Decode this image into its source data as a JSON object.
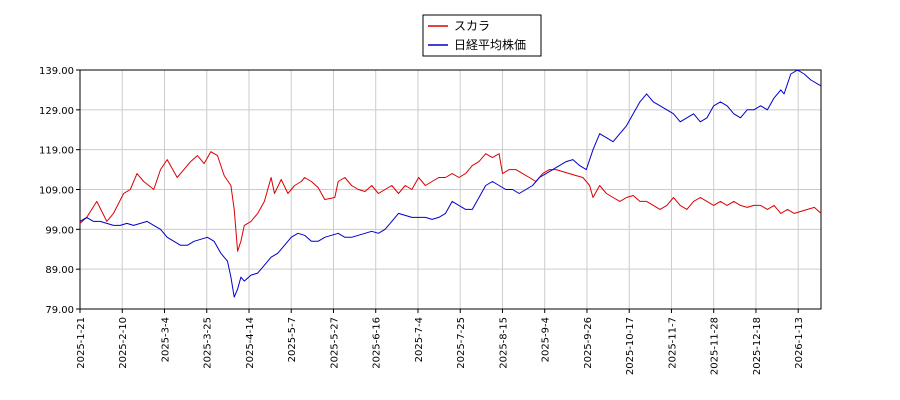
{
  "chart_data": {
    "type": "line",
    "title": "",
    "xlabel": "",
    "ylabel": "",
    "ylim": [
      79,
      139
    ],
    "yticks": [
      "79.00",
      "89.00",
      "99.00",
      "109.00",
      "119.00",
      "129.00",
      "139.00"
    ],
    "xticks": [
      "2025-1-21",
      "2025-2-10",
      "2025-3-4",
      "2025-3-25",
      "2025-4-14",
      "2025-5-7",
      "2025-5-27",
      "2025-6-16",
      "2025-7-4",
      "2025-7-25",
      "2025-8-15",
      "2025-9-4",
      "2025-9-26",
      "2025-10-17",
      "2025-11-7",
      "2025-11-28",
      "2025-12-18",
      "2026-1-13"
    ],
    "grid": true,
    "legend": "top-center",
    "series": [
      {
        "name": "スカラ",
        "color": "#dd0000",
        "points": [
          [
            0,
            100.5
          ],
          [
            2,
            102
          ],
          [
            5,
            106
          ],
          [
            8,
            101
          ],
          [
            10,
            103
          ],
          [
            13,
            108
          ],
          [
            15,
            109
          ],
          [
            17,
            113
          ],
          [
            19,
            111
          ],
          [
            22,
            109
          ],
          [
            24,
            114
          ],
          [
            26,
            116.5
          ],
          [
            29,
            112
          ],
          [
            31,
            114
          ],
          [
            33,
            116
          ],
          [
            35,
            117.5
          ],
          [
            37,
            115.5
          ],
          [
            39,
            118.5
          ],
          [
            41,
            117.5
          ],
          [
            43,
            112.5
          ],
          [
            45,
            110
          ],
          [
            46,
            104
          ],
          [
            47,
            93.5
          ],
          [
            48,
            96
          ],
          [
            49,
            100
          ],
          [
            51,
            101
          ],
          [
            53,
            103
          ],
          [
            55,
            106
          ],
          [
            57,
            112
          ],
          [
            58,
            108
          ],
          [
            60,
            111.5
          ],
          [
            62,
            108
          ],
          [
            64,
            110
          ],
          [
            66,
            111
          ],
          [
            67,
            112
          ],
          [
            69,
            111
          ],
          [
            71,
            109.5
          ],
          [
            73,
            106.5
          ],
          [
            76,
            107
          ],
          [
            77,
            111
          ],
          [
            79,
            112
          ],
          [
            81,
            110
          ],
          [
            83,
            109
          ],
          [
            85,
            108.5
          ],
          [
            87,
            110
          ],
          [
            89,
            108
          ],
          [
            91,
            109
          ],
          [
            93,
            110
          ],
          [
            95,
            108
          ],
          [
            97,
            110
          ],
          [
            99,
            109
          ],
          [
            101,
            112
          ],
          [
            103,
            110
          ],
          [
            105,
            111
          ],
          [
            107,
            112
          ],
          [
            109,
            112
          ],
          [
            111,
            113
          ],
          [
            113,
            112
          ],
          [
            115,
            113
          ],
          [
            117,
            115
          ],
          [
            119,
            116
          ],
          [
            121,
            118
          ],
          [
            123,
            117
          ],
          [
            125,
            118
          ],
          [
            126,
            113
          ],
          [
            128,
            114
          ],
          [
            130,
            114
          ],
          [
            132,
            113
          ],
          [
            134,
            112
          ],
          [
            136,
            111
          ],
          [
            138,
            113
          ],
          [
            140,
            114
          ],
          [
            142,
            114
          ],
          [
            144,
            113.5
          ],
          [
            146,
            113
          ],
          [
            148,
            112.5
          ],
          [
            150,
            112
          ],
          [
            152,
            110
          ],
          [
            153,
            107
          ],
          [
            155,
            110
          ],
          [
            157,
            108
          ],
          [
            159,
            107
          ],
          [
            161,
            106
          ],
          [
            163,
            107
          ],
          [
            165,
            107.5
          ],
          [
            167,
            106
          ],
          [
            169,
            106
          ],
          [
            171,
            105
          ],
          [
            173,
            104
          ],
          [
            175,
            105
          ],
          [
            177,
            107
          ],
          [
            179,
            105
          ],
          [
            181,
            104
          ],
          [
            183,
            106
          ],
          [
            185,
            107
          ],
          [
            187,
            106
          ],
          [
            189,
            105
          ],
          [
            191,
            106
          ],
          [
            193,
            105
          ],
          [
            195,
            106
          ],
          [
            197,
            105
          ],
          [
            199,
            104.5
          ],
          [
            201,
            105
          ],
          [
            203,
            105
          ],
          [
            205,
            104
          ],
          [
            207,
            105
          ],
          [
            209,
            103
          ],
          [
            211,
            104
          ],
          [
            213,
            103
          ],
          [
            215,
            103.5
          ],
          [
            217,
            104
          ],
          [
            219,
            104.5
          ],
          [
            221,
            103
          ]
        ]
      },
      {
        "name": "日経平均株価",
        "color": "#0000cc",
        "points": [
          [
            0,
            101
          ],
          [
            2,
            102
          ],
          [
            4,
            101
          ],
          [
            6,
            101
          ],
          [
            8,
            100.5
          ],
          [
            10,
            100
          ],
          [
            12,
            100
          ],
          [
            14,
            100.5
          ],
          [
            16,
            100
          ],
          [
            18,
            100.5
          ],
          [
            20,
            101
          ],
          [
            22,
            100
          ],
          [
            24,
            99
          ],
          [
            26,
            97
          ],
          [
            28,
            96
          ],
          [
            30,
            95
          ],
          [
            32,
            95
          ],
          [
            34,
            96
          ],
          [
            36,
            96.5
          ],
          [
            38,
            97
          ],
          [
            40,
            96
          ],
          [
            42,
            93
          ],
          [
            44,
            91
          ],
          [
            45,
            87
          ],
          [
            46,
            82
          ],
          [
            47,
            84
          ],
          [
            48,
            87
          ],
          [
            49,
            86
          ],
          [
            51,
            87.5
          ],
          [
            53,
            88
          ],
          [
            55,
            90
          ],
          [
            57,
            92
          ],
          [
            59,
            93
          ],
          [
            61,
            95
          ],
          [
            63,
            97
          ],
          [
            65,
            98
          ],
          [
            67,
            97.5
          ],
          [
            69,
            96
          ],
          [
            71,
            96
          ],
          [
            73,
            97
          ],
          [
            75,
            97.5
          ],
          [
            77,
            98
          ],
          [
            79,
            97
          ],
          [
            81,
            97
          ],
          [
            83,
            97.5
          ],
          [
            85,
            98
          ],
          [
            87,
            98.5
          ],
          [
            89,
            98
          ],
          [
            91,
            99
          ],
          [
            93,
            101
          ],
          [
            95,
            103
          ],
          [
            97,
            102.5
          ],
          [
            99,
            102
          ],
          [
            101,
            102
          ],
          [
            103,
            102
          ],
          [
            105,
            101.5
          ],
          [
            107,
            102
          ],
          [
            109,
            103
          ],
          [
            111,
            106
          ],
          [
            113,
            105
          ],
          [
            115,
            104
          ],
          [
            117,
            104
          ],
          [
            119,
            107
          ],
          [
            121,
            110
          ],
          [
            123,
            111
          ],
          [
            125,
            110
          ],
          [
            127,
            109
          ],
          [
            129,
            109
          ],
          [
            131,
            108
          ],
          [
            133,
            109
          ],
          [
            135,
            110
          ],
          [
            137,
            112
          ],
          [
            139,
            113
          ],
          [
            141,
            114
          ],
          [
            143,
            115
          ],
          [
            145,
            116
          ],
          [
            147,
            116.5
          ],
          [
            149,
            115
          ],
          [
            151,
            114
          ],
          [
            153,
            119
          ],
          [
            155,
            123
          ],
          [
            157,
            122
          ],
          [
            159,
            121
          ],
          [
            161,
            123
          ],
          [
            163,
            125
          ],
          [
            165,
            128
          ],
          [
            167,
            131
          ],
          [
            169,
            133
          ],
          [
            171,
            131
          ],
          [
            173,
            130
          ],
          [
            175,
            129
          ],
          [
            177,
            128
          ],
          [
            179,
            126
          ],
          [
            181,
            127
          ],
          [
            183,
            128
          ],
          [
            185,
            126
          ],
          [
            187,
            127
          ],
          [
            189,
            130
          ],
          [
            191,
            131
          ],
          [
            193,
            130
          ],
          [
            195,
            128
          ],
          [
            197,
            127
          ],
          [
            199,
            129
          ],
          [
            201,
            129
          ],
          [
            203,
            130
          ],
          [
            205,
            129
          ],
          [
            207,
            132
          ],
          [
            209,
            134
          ],
          [
            210,
            133
          ],
          [
            212,
            138
          ],
          [
            214,
            139
          ],
          [
            216,
            138
          ],
          [
            218,
            136.5
          ],
          [
            221,
            135
          ]
        ]
      }
    ],
    "x_range": [
      0,
      221
    ],
    "x_tick_positions": [
      0,
      12.6,
      25.2,
      37.8,
      50.4,
      63,
      75.6,
      88.2,
      100.8,
      113.4,
      126,
      138.6,
      151.2,
      163.8,
      176.4,
      189,
      201.6,
      214.2
    ]
  }
}
